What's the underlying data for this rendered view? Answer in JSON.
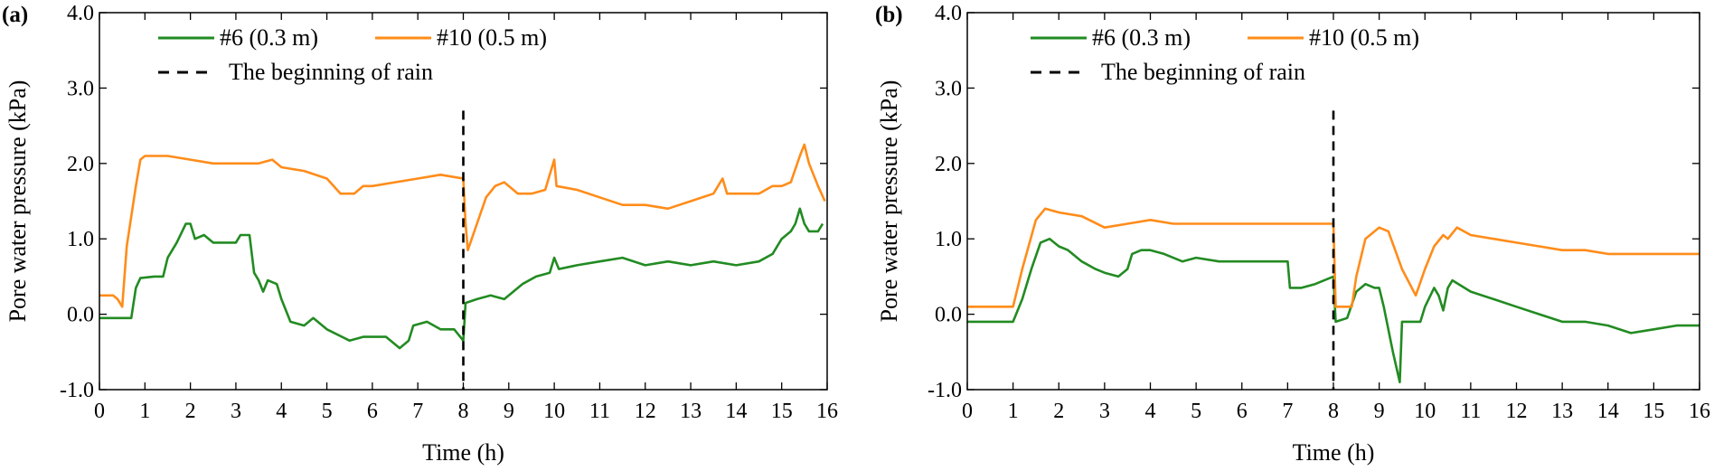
{
  "chart_data": [
    {
      "panel_label": "(a)",
      "type": "line",
      "xlabel": "Time (h)",
      "ylabel": "Pore water pressure (kPa)",
      "xlim": [
        0,
        16
      ],
      "ylim": [
        -1.0,
        4.0
      ],
      "xticks": [
        "0",
        "1",
        "2",
        "3",
        "4",
        "5",
        "6",
        "7",
        "8",
        "9",
        "10",
        "11",
        "12",
        "13",
        "14",
        "15",
        "16"
      ],
      "yticks": [
        "-1.0",
        "0.0",
        "1.0",
        "2.0",
        "3.0",
        "4.0"
      ],
      "ytick_values": [
        -1,
        0,
        1,
        2,
        3,
        4
      ],
      "grid": false,
      "legend_position": "top",
      "rain_start": {
        "x": 8,
        "label": "The beginning of rain",
        "color": "#000000"
      },
      "series": [
        {
          "name": "#6 (0.3 m)",
          "color": "#228B22",
          "points": [
            [
              0,
              -0.05
            ],
            [
              0.7,
              -0.05
            ],
            [
              0.8,
              0.35
            ],
            [
              0.9,
              0.48
            ],
            [
              1.2,
              0.5
            ],
            [
              1.4,
              0.5
            ],
            [
              1.5,
              0.75
            ],
            [
              1.7,
              0.95
            ],
            [
              1.9,
              1.2
            ],
            [
              2.0,
              1.2
            ],
            [
              2.1,
              1.0
            ],
            [
              2.3,
              1.05
            ],
            [
              2.5,
              0.95
            ],
            [
              3.0,
              0.95
            ],
            [
              3.1,
              1.05
            ],
            [
              3.3,
              1.05
            ],
            [
              3.4,
              0.55
            ],
            [
              3.5,
              0.45
            ],
            [
              3.6,
              0.3
            ],
            [
              3.7,
              0.45
            ],
            [
              3.9,
              0.4
            ],
            [
              4.0,
              0.2
            ],
            [
              4.2,
              -0.1
            ],
            [
              4.5,
              -0.15
            ],
            [
              4.7,
              -0.05
            ],
            [
              5.0,
              -0.2
            ],
            [
              5.5,
              -0.35
            ],
            [
              5.8,
              -0.3
            ],
            [
              6.3,
              -0.3
            ],
            [
              6.6,
              -0.45
            ],
            [
              6.8,
              -0.35
            ],
            [
              6.9,
              -0.15
            ],
            [
              7.2,
              -0.1
            ],
            [
              7.5,
              -0.2
            ],
            [
              7.8,
              -0.2
            ],
            [
              8.0,
              -0.35
            ],
            [
              8.05,
              0.15
            ],
            [
              8.3,
              0.2
            ],
            [
              8.6,
              0.25
            ],
            [
              8.9,
              0.2
            ],
            [
              9.1,
              0.3
            ],
            [
              9.3,
              0.4
            ],
            [
              9.6,
              0.5
            ],
            [
              9.9,
              0.55
            ],
            [
              10.0,
              0.75
            ],
            [
              10.1,
              0.6
            ],
            [
              10.5,
              0.65
            ],
            [
              11.0,
              0.7
            ],
            [
              11.5,
              0.75
            ],
            [
              12.0,
              0.65
            ],
            [
              12.5,
              0.7
            ],
            [
              13.0,
              0.65
            ],
            [
              13.5,
              0.7
            ],
            [
              14.0,
              0.65
            ],
            [
              14.5,
              0.7
            ],
            [
              14.8,
              0.8
            ],
            [
              15.0,
              1.0
            ],
            [
              15.2,
              1.1
            ],
            [
              15.3,
              1.2
            ],
            [
              15.4,
              1.4
            ],
            [
              15.5,
              1.2
            ],
            [
              15.6,
              1.1
            ],
            [
              15.8,
              1.1
            ],
            [
              15.9,
              1.2
            ]
          ]
        },
        {
          "name": "#10 (0.5 m)",
          "color": "#FF8C1A",
          "points": [
            [
              0,
              0.25
            ],
            [
              0.3,
              0.25
            ],
            [
              0.4,
              0.2
            ],
            [
              0.5,
              0.1
            ],
            [
              0.6,
              0.9
            ],
            [
              0.8,
              1.7
            ],
            [
              0.9,
              2.05
            ],
            [
              1.0,
              2.1
            ],
            [
              1.5,
              2.1
            ],
            [
              2.0,
              2.05
            ],
            [
              2.5,
              2.0
            ],
            [
              3.0,
              2.0
            ],
            [
              3.5,
              2.0
            ],
            [
              3.8,
              2.05
            ],
            [
              4.0,
              1.95
            ],
            [
              4.5,
              1.9
            ],
            [
              5.0,
              1.8
            ],
            [
              5.3,
              1.6
            ],
            [
              5.6,
              1.6
            ],
            [
              5.8,
              1.7
            ],
            [
              6.0,
              1.7
            ],
            [
              6.5,
              1.75
            ],
            [
              7.0,
              1.8
            ],
            [
              7.5,
              1.85
            ],
            [
              8.0,
              1.8
            ],
            [
              8.05,
              1.2
            ],
            [
              8.1,
              0.85
            ],
            [
              8.3,
              1.2
            ],
            [
              8.5,
              1.55
            ],
            [
              8.7,
              1.7
            ],
            [
              8.9,
              1.75
            ],
            [
              9.2,
              1.6
            ],
            [
              9.5,
              1.6
            ],
            [
              9.8,
              1.65
            ],
            [
              10.0,
              2.05
            ],
            [
              10.05,
              1.7
            ],
            [
              10.5,
              1.65
            ],
            [
              11.0,
              1.55
            ],
            [
              11.5,
              1.45
            ],
            [
              12.0,
              1.45
            ],
            [
              12.5,
              1.4
            ],
            [
              13.0,
              1.5
            ],
            [
              13.5,
              1.6
            ],
            [
              13.7,
              1.8
            ],
            [
              13.8,
              1.6
            ],
            [
              14.0,
              1.6
            ],
            [
              14.5,
              1.6
            ],
            [
              14.8,
              1.7
            ],
            [
              15.0,
              1.7
            ],
            [
              15.2,
              1.75
            ],
            [
              15.4,
              2.1
            ],
            [
              15.5,
              2.25
            ],
            [
              15.6,
              2.0
            ],
            [
              15.8,
              1.7
            ],
            [
              15.95,
              1.5
            ]
          ]
        }
      ]
    },
    {
      "panel_label": "(b)",
      "type": "line",
      "xlabel": "Time (h)",
      "ylabel": "Pore water pressure (kPa)",
      "xlim": [
        0,
        16
      ],
      "ylim": [
        -1.0,
        4.0
      ],
      "xticks": [
        "0",
        "1",
        "2",
        "3",
        "4",
        "5",
        "6",
        "7",
        "8",
        "9",
        "10",
        "11",
        "12",
        "13",
        "14",
        "15",
        "16"
      ],
      "yticks": [
        "-1.0",
        "0.0",
        "1.0",
        "2.0",
        "3.0",
        "4.0"
      ],
      "ytick_values": [
        -1,
        0,
        1,
        2,
        3,
        4
      ],
      "grid": false,
      "legend_position": "top",
      "rain_start": {
        "x": 8,
        "label": "The beginning of rain",
        "color": "#000000"
      },
      "series": [
        {
          "name": "#6 (0.3 m)",
          "color": "#228B22",
          "points": [
            [
              0,
              -0.1
            ],
            [
              1.0,
              -0.1
            ],
            [
              1.2,
              0.2
            ],
            [
              1.4,
              0.6
            ],
            [
              1.6,
              0.95
            ],
            [
              1.8,
              1.0
            ],
            [
              2.0,
              0.9
            ],
            [
              2.2,
              0.85
            ],
            [
              2.5,
              0.7
            ],
            [
              2.8,
              0.6
            ],
            [
              3.0,
              0.55
            ],
            [
              3.3,
              0.5
            ],
            [
              3.5,
              0.6
            ],
            [
              3.6,
              0.8
            ],
            [
              3.8,
              0.85
            ],
            [
              4.0,
              0.85
            ],
            [
              4.3,
              0.8
            ],
            [
              4.7,
              0.7
            ],
            [
              5.0,
              0.75
            ],
            [
              5.5,
              0.7
            ],
            [
              6.0,
              0.7
            ],
            [
              7.0,
              0.7
            ],
            [
              7.05,
              0.35
            ],
            [
              7.3,
              0.35
            ],
            [
              7.6,
              0.4
            ],
            [
              8.0,
              0.5
            ],
            [
              8.05,
              -0.1
            ],
            [
              8.3,
              -0.05
            ],
            [
              8.5,
              0.3
            ],
            [
              8.7,
              0.4
            ],
            [
              8.9,
              0.35
            ],
            [
              9.0,
              0.35
            ],
            [
              9.1,
              0.1
            ],
            [
              9.3,
              -0.5
            ],
            [
              9.45,
              -0.9
            ],
            [
              9.5,
              -0.1
            ],
            [
              9.9,
              -0.1
            ],
            [
              10.0,
              0.1
            ],
            [
              10.2,
              0.35
            ],
            [
              10.3,
              0.25
            ],
            [
              10.4,
              0.05
            ],
            [
              10.5,
              0.35
            ],
            [
              10.6,
              0.45
            ],
            [
              11.0,
              0.3
            ],
            [
              11.5,
              0.2
            ],
            [
              12.0,
              0.1
            ],
            [
              12.5,
              0.0
            ],
            [
              13.0,
              -0.1
            ],
            [
              13.5,
              -0.1
            ],
            [
              14.0,
              -0.15
            ],
            [
              14.5,
              -0.25
            ],
            [
              15.0,
              -0.2
            ],
            [
              15.5,
              -0.15
            ],
            [
              16.0,
              -0.15
            ]
          ]
        },
        {
          "name": "#10 (0.5 m)",
          "color": "#FF8C1A",
          "points": [
            [
              0,
              0.1
            ],
            [
              1.0,
              0.1
            ],
            [
              1.2,
              0.6
            ],
            [
              1.5,
              1.25
            ],
            [
              1.7,
              1.4
            ],
            [
              2.0,
              1.35
            ],
            [
              2.5,
              1.3
            ],
            [
              3.0,
              1.15
            ],
            [
              3.5,
              1.2
            ],
            [
              4.0,
              1.25
            ],
            [
              4.5,
              1.2
            ],
            [
              5.0,
              1.2
            ],
            [
              6.0,
              1.2
            ],
            [
              7.0,
              1.2
            ],
            [
              8.0,
              1.2
            ],
            [
              8.05,
              0.1
            ],
            [
              8.4,
              0.1
            ],
            [
              8.5,
              0.5
            ],
            [
              8.7,
              1.0
            ],
            [
              9.0,
              1.15
            ],
            [
              9.2,
              1.1
            ],
            [
              9.5,
              0.6
            ],
            [
              9.8,
              0.25
            ],
            [
              10.0,
              0.6
            ],
            [
              10.2,
              0.9
            ],
            [
              10.4,
              1.05
            ],
            [
              10.5,
              1.0
            ],
            [
              10.7,
              1.15
            ],
            [
              11.0,
              1.05
            ],
            [
              11.5,
              1.0
            ],
            [
              12.0,
              0.95
            ],
            [
              12.5,
              0.9
            ],
            [
              13.0,
              0.85
            ],
            [
              13.5,
              0.85
            ],
            [
              14.0,
              0.8
            ],
            [
              14.5,
              0.8
            ],
            [
              15.0,
              0.8
            ],
            [
              15.5,
              0.8
            ],
            [
              16.0,
              0.8
            ]
          ]
        }
      ]
    }
  ]
}
